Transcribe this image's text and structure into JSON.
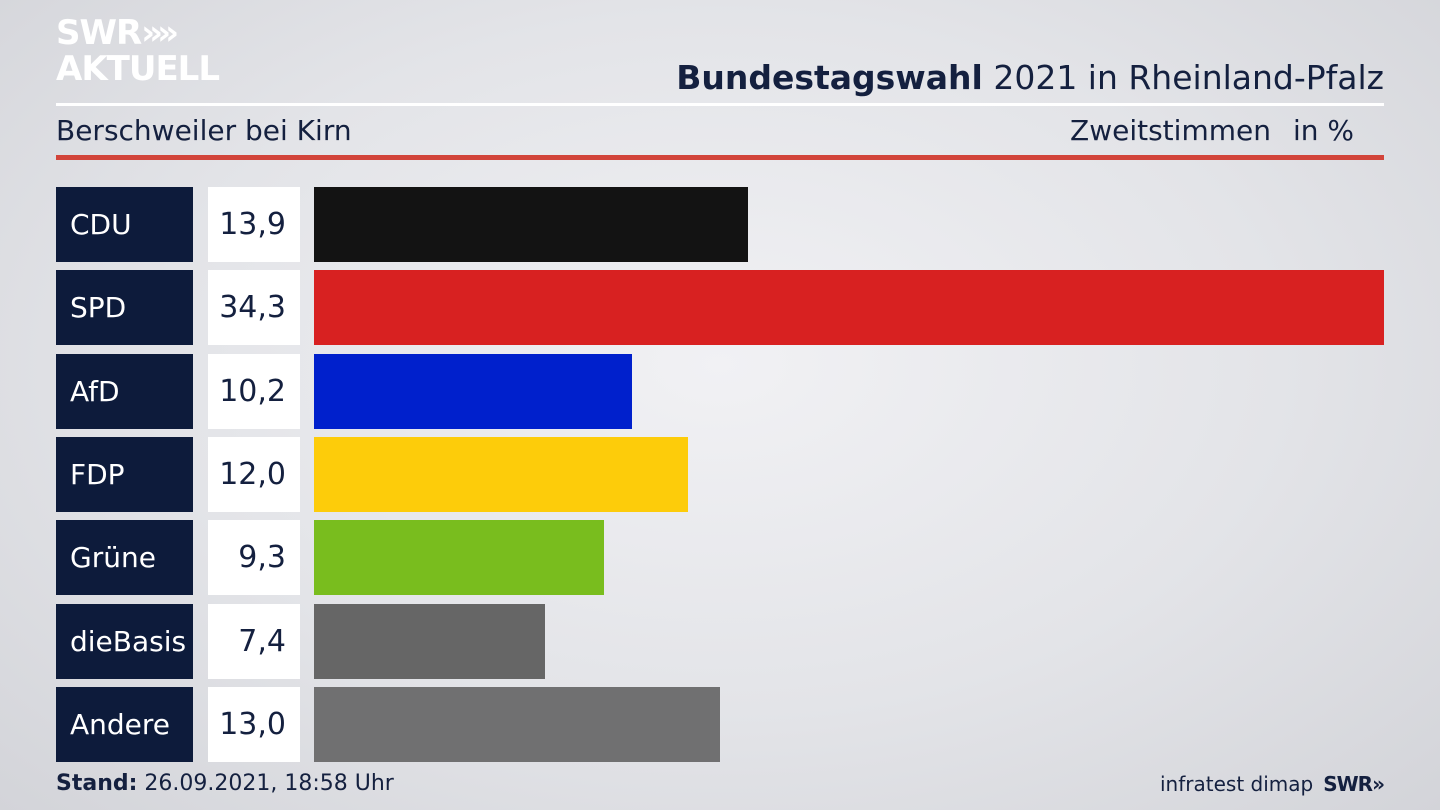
{
  "brand": {
    "logo_line1": "SWR",
    "logo_line2": "AKTUELL",
    "logo_chevrons": "»",
    "footer_logo": "SWR»"
  },
  "header": {
    "title_bold": "Bundestagswahl",
    "title_rest": " 2021 in Rheinland-Pfalz",
    "subtitle": "Berschweiler bei Kirn",
    "measure": "Zweitstimmen",
    "unit": "in %"
  },
  "footer": {
    "stand_label": "Stand:",
    "stand_value": " 26.09.2021, 18:58 Uhr",
    "source": "infratest dimap"
  },
  "chart_data": {
    "type": "bar",
    "orientation": "horizontal",
    "title": "Bundestagswahl 2021 in Rheinland-Pfalz",
    "subtitle": "Berschweiler bei Kirn",
    "ylabel": "Zweitstimmen in %",
    "categories": [
      "CDU",
      "SPD",
      "AfD",
      "FDP",
      "Grüne",
      "dieBasis",
      "Andere"
    ],
    "values": [
      13.9,
      34.3,
      10.2,
      12.0,
      9.3,
      7.4,
      13.0
    ],
    "labels": [
      "13,9",
      "34,3",
      "10,2",
      "12,0",
      "9,3",
      "7,4",
      "13,0"
    ],
    "colors": [
      "#131313",
      "#d82121",
      "#0020cc",
      "#fdcc0a",
      "#79bd1e",
      "#666666",
      "#707071"
    ],
    "xlim": [
      0,
      34.3
    ],
    "grid": false,
    "legend": "none"
  }
}
